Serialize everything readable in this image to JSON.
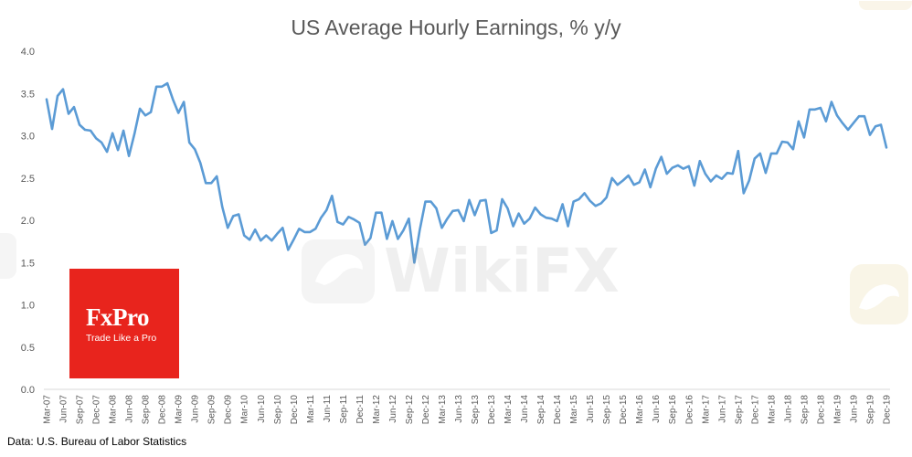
{
  "colors": {
    "line": "#5b9bd5",
    "axis": "#d9d9d9",
    "text": "#595959",
    "logo": "#e8241d",
    "watermark": "#b0b0b0"
  },
  "logo": {
    "name": "FxPro",
    "tagline": "Trade Like a Pro"
  },
  "watermark": {
    "text": "WikiFX",
    "icon": "shield-eagle-icon"
  },
  "source": "Data: U.S. Bureau of Labor Statistics",
  "chart_data": {
    "type": "line",
    "title": "US Average Hourly Earnings, % y/y",
    "xlabel": "",
    "ylabel": "",
    "ylim": [
      0,
      4
    ],
    "yticks": [
      "0.0",
      "0.5",
      "1.0",
      "1.5",
      "2.0",
      "2.5",
      "3.0",
      "3.5",
      "4.0"
    ],
    "grid": false,
    "legend": "none",
    "x_tick_labels": [
      "Mar-07",
      "Jun-07",
      "Sep-07",
      "Dec-07",
      "Mar-08",
      "Jun-08",
      "Sep-08",
      "Dec-08",
      "Mar-09",
      "Jun-09",
      "Sep-09",
      "Dec-09",
      "Mar-10",
      "Jun-10",
      "Sep-10",
      "Dec-10",
      "Mar-11",
      "Jun-11",
      "Sep-11",
      "Dec-11",
      "Mar-12",
      "Jun-12",
      "Sep-12",
      "Dec-12",
      "Mar-13",
      "Jun-13",
      "Sep-13",
      "Dec-13",
      "Mar-14",
      "Jun-14",
      "Sep-14",
      "Dec-14",
      "Mar-15",
      "Jun-15",
      "Sep-15",
      "Dec-15",
      "Mar-16",
      "Jun-16",
      "Sep-16",
      "Dec-16",
      "Mar-17",
      "Jun-17",
      "Sep-17",
      "Dec-17",
      "Mar-18",
      "Jun-18",
      "Sep-18",
      "Dec-18",
      "Mar-19",
      "Jun-19",
      "Sep-19",
      "Dec-19"
    ],
    "x_start": "Mar-07",
    "x_end": "Dec-19",
    "series": [
      {
        "values": [
          3.43,
          3.08,
          3.47,
          3.55,
          3.26,
          3.34,
          3.13,
          3.07,
          3.06,
          2.97,
          2.92,
          2.81,
          3.03,
          2.83,
          3.06,
          2.76,
          3.02,
          3.32,
          3.24,
          3.28,
          3.58,
          3.58,
          3.62,
          3.43,
          3.27,
          3.4,
          2.92,
          2.84,
          2.68,
          2.44,
          2.44,
          2.52,
          2.16,
          1.91,
          2.05,
          2.07,
          1.82,
          1.77,
          1.89,
          1.76,
          1.82,
          1.76,
          1.84,
          1.91,
          1.65,
          1.77,
          1.9,
          1.86,
          1.86,
          1.9,
          2.03,
          2.12,
          2.29,
          1.98,
          1.95,
          2.04,
          2.01,
          1.97,
          1.71,
          1.79,
          2.09,
          2.09,
          1.78,
          1.99,
          1.78,
          1.88,
          2.02,
          1.5,
          1.89,
          2.22,
          2.22,
          2.14,
          1.91,
          2.02,
          2.11,
          2.12,
          1.99,
          2.24,
          2.06,
          2.23,
          2.24,
          1.85,
          1.88,
          2.25,
          2.14,
          1.93,
          2.08,
          1.96,
          2.02,
          2.15,
          2.07,
          2.03,
          2.02,
          1.99,
          2.19,
          1.93,
          2.22,
          2.25,
          2.32,
          2.23,
          2.17,
          2.2,
          2.27,
          2.5,
          2.42,
          2.47,
          2.53,
          2.42,
          2.45,
          2.6,
          2.39,
          2.61,
          2.75,
          2.55,
          2.62,
          2.65,
          2.61,
          2.64,
          2.41,
          2.7,
          2.55,
          2.46,
          2.53,
          2.49,
          2.56,
          2.55,
          2.82,
          2.32,
          2.47,
          2.73,
          2.79,
          2.56,
          2.79,
          2.79,
          2.93,
          2.92,
          2.84,
          3.17,
          2.98,
          3.31,
          3.31,
          3.33,
          3.17,
          3.4,
          3.24,
          3.15,
          3.07,
          3.15,
          3.23,
          3.23,
          3.01,
          3.11,
          3.13,
          2.86
        ]
      }
    ]
  }
}
